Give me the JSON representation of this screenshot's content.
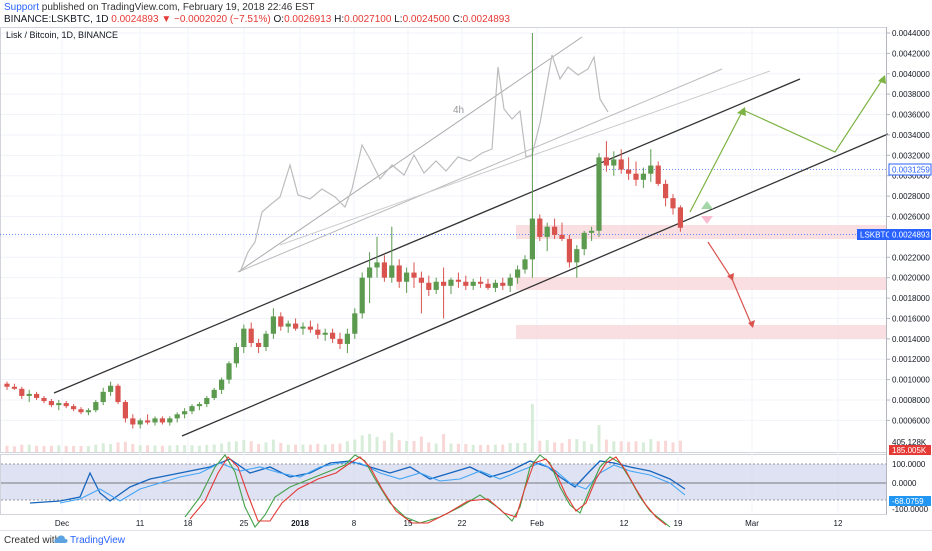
{
  "header": {
    "line1_link": "Support",
    "line1_text": " published on TradingView.com, February 19, 2018 22:46 EST",
    "symbol": "BINANCE:LSKBTC, 1D",
    "last": "0.0024893",
    "change": "▼ −0.0002020 (−7.51%)",
    "o_label": "O:",
    "o": "0.0026913",
    "h_label": "H:",
    "h": "0.0027100",
    "l_label": "L:",
    "l": "0.0024500",
    "c_label": "C:",
    "c": "0.0024893"
  },
  "legend": "Lisk / Bitcoin, 1D, BINANCE",
  "annotation_4h": "4h",
  "footer": {
    "created_with": "Created with",
    "brand": "TradingView"
  },
  "colors": {
    "up": "#5b9a4f",
    "down": "#d9534f",
    "accent": "#2962ff",
    "channel": "#333333"
  },
  "chart_data": {
    "type": "candlestick",
    "price_axis": {
      "ticks": [
        "0.0044000",
        "0.0042000",
        "0.0040000",
        "0.0038000",
        "0.0036000",
        "0.0034000",
        "0.0032000",
        "0.0030000",
        "0.0028000",
        "0.0026000",
        "0.0024000",
        "0.0022000",
        "0.0020000",
        "0.0018000",
        "0.0016000",
        "0.0014000",
        "0.0012000",
        "0.0010000",
        "0.0008000",
        "0.0006000"
      ],
      "range": [
        0.00045,
        0.0045
      ]
    },
    "time_axis": [
      "Dec",
      "11",
      "18",
      "25",
      "2018",
      "8",
      "15",
      "22",
      "Feb",
      "12",
      "19",
      "Mar",
      "12"
    ],
    "last_price_label": "LSKBTC",
    "last_price_value": "0.0024893",
    "level_value": "0.0031259",
    "volume_label": "405.128K",
    "volume_red_label": "185.005K",
    "oscillator_ticks": [
      "100.0000",
      "0.0000",
      "-100.0000"
    ],
    "oscillator_value": "-68.0759",
    "candles": [
      [
        0.00096,
        0.00098,
        0.0009,
        0.00093
      ],
      [
        0.00093,
        0.00096,
        0.0009,
        0.00091
      ],
      [
        0.00091,
        0.00093,
        0.00081,
        0.00084
      ],
      [
        0.00084,
        0.0009,
        0.00078,
        0.00086
      ],
      [
        0.00086,
        0.00088,
        0.0008,
        0.00082
      ],
      [
        0.00082,
        0.00084,
        0.00077,
        0.00079
      ],
      [
        0.00079,
        0.00081,
        0.00073,
        0.00075
      ],
      [
        0.00075,
        0.0008,
        0.0007,
        0.00077
      ],
      [
        0.00077,
        0.00079,
        0.00072,
        0.00074
      ],
      [
        0.00074,
        0.00076,
        0.00069,
        0.00071
      ],
      [
        0.00071,
        0.00073,
        0.00066,
        0.00068
      ],
      [
        0.00068,
        0.00072,
        0.00065,
        0.0007
      ],
      [
        0.0007,
        0.0008,
        0.00068,
        0.00078
      ],
      [
        0.00078,
        0.00092,
        0.00075,
        0.00088
      ],
      [
        0.00088,
        0.00098,
        0.00084,
        0.00094
      ],
      [
        0.00094,
        0.00096,
        0.00076,
        0.00078
      ],
      [
        0.00078,
        0.0008,
        0.00058,
        0.00062
      ],
      [
        0.00062,
        0.00066,
        0.00052,
        0.00056
      ],
      [
        0.00056,
        0.00062,
        0.00052,
        0.0006
      ],
      [
        0.0006,
        0.00066,
        0.00056,
        0.00058
      ],
      [
        0.00058,
        0.00064,
        0.00055,
        0.00062
      ],
      [
        0.00062,
        0.00064,
        0.00056,
        0.00058
      ],
      [
        0.00058,
        0.00064,
        0.00055,
        0.00062
      ],
      [
        0.00062,
        0.00068,
        0.00058,
        0.00066
      ],
      [
        0.00066,
        0.00072,
        0.00062,
        0.00069
      ],
      [
        0.00069,
        0.00076,
        0.00066,
        0.00074
      ],
      [
        0.00074,
        0.00078,
        0.0007,
        0.00076
      ],
      [
        0.00076,
        0.00084,
        0.00073,
        0.00082
      ],
      [
        0.00082,
        0.00092,
        0.0008,
        0.0009
      ],
      [
        0.0009,
        0.00102,
        0.00086,
        0.001
      ],
      [
        0.001,
        0.00118,
        0.00096,
        0.00116
      ],
      [
        0.00116,
        0.00136,
        0.00112,
        0.00132
      ],
      [
        0.00132,
        0.00154,
        0.00126,
        0.0015
      ],
      [
        0.0015,
        0.00156,
        0.00132,
        0.00136
      ],
      [
        0.00136,
        0.0014,
        0.00126,
        0.00132
      ],
      [
        0.00132,
        0.00148,
        0.00128,
        0.00145
      ],
      [
        0.00145,
        0.0017,
        0.0014,
        0.00162
      ],
      [
        0.00162,
        0.00166,
        0.00148,
        0.00152
      ],
      [
        0.00152,
        0.00158,
        0.00146,
        0.00155
      ],
      [
        0.00155,
        0.0016,
        0.00148,
        0.0015
      ],
      [
        0.0015,
        0.00156,
        0.00144,
        0.00152
      ],
      [
        0.00152,
        0.00158,
        0.00146,
        0.00149
      ],
      [
        0.00149,
        0.00155,
        0.0014,
        0.00144
      ],
      [
        0.00144,
        0.0015,
        0.00138,
        0.00146
      ],
      [
        0.00146,
        0.0015,
        0.00136,
        0.0014
      ],
      [
        0.0014,
        0.00146,
        0.0013,
        0.00135
      ],
      [
        0.00135,
        0.0015,
        0.00126,
        0.00145
      ],
      [
        0.00145,
        0.0017,
        0.0014,
        0.00165
      ],
      [
        0.00165,
        0.00205,
        0.0016,
        0.002
      ],
      [
        0.002,
        0.00225,
        0.00175,
        0.0021
      ],
      [
        0.0021,
        0.0024,
        0.002,
        0.00215
      ],
      [
        0.00215,
        0.00222,
        0.00196,
        0.002
      ],
      [
        0.002,
        0.0025,
        0.00195,
        0.00212
      ],
      [
        0.00212,
        0.00218,
        0.0019,
        0.00196
      ],
      [
        0.00196,
        0.0021,
        0.00185,
        0.00205
      ],
      [
        0.00205,
        0.00215,
        0.0019,
        0.002
      ],
      [
        0.002,
        0.00206,
        0.00165,
        0.00195
      ],
      [
        0.00195,
        0.00202,
        0.00182,
        0.00188
      ],
      [
        0.00188,
        0.002,
        0.00184,
        0.00196
      ],
      [
        0.00196,
        0.0021,
        0.0016,
        0.00192
      ],
      [
        0.00192,
        0.002,
        0.00184,
        0.00198
      ],
      [
        0.00198,
        0.00205,
        0.0019,
        0.00196
      ],
      [
        0.00196,
        0.00202,
        0.00188,
        0.00192
      ],
      [
        0.00192,
        0.00199,
        0.00188,
        0.00196
      ],
      [
        0.00196,
        0.00201,
        0.0019,
        0.00194
      ],
      [
        0.00194,
        0.00199,
        0.00188,
        0.0019
      ],
      [
        0.0019,
        0.00198,
        0.00186,
        0.00195
      ],
      [
        0.00195,
        0.002,
        0.00188,
        0.00192
      ],
      [
        0.00192,
        0.00204,
        0.00186,
        0.002
      ],
      [
        0.002,
        0.00212,
        0.00194,
        0.00208
      ],
      [
        0.00208,
        0.00222,
        0.00204,
        0.00218
      ],
      [
        0.00218,
        0.0044,
        0.002,
        0.00258
      ],
      [
        0.00258,
        0.00262,
        0.00236,
        0.0024
      ],
      [
        0.0024,
        0.00254,
        0.00226,
        0.0025
      ],
      [
        0.0025,
        0.00258,
        0.00238,
        0.00242
      ],
      [
        0.00242,
        0.00254,
        0.00236,
        0.00238
      ],
      [
        0.00238,
        0.00242,
        0.0021,
        0.00215
      ],
      [
        0.00215,
        0.00232,
        0.002,
        0.00228
      ],
      [
        0.00228,
        0.00246,
        0.00222,
        0.00244
      ],
      [
        0.00244,
        0.0025,
        0.00236,
        0.00246
      ],
      [
        0.00246,
        0.00322,
        0.0024,
        0.00318
      ],
      [
        0.00318,
        0.00334,
        0.00304,
        0.0031
      ],
      [
        0.0031,
        0.00324,
        0.003,
        0.00316
      ],
      [
        0.00316,
        0.00326,
        0.00302,
        0.00306
      ],
      [
        0.00306,
        0.00318,
        0.00296,
        0.00302
      ],
      [
        0.00302,
        0.00314,
        0.0029,
        0.00296
      ],
      [
        0.00296,
        0.00308,
        0.00288,
        0.00302
      ],
      [
        0.00302,
        0.00326,
        0.00294,
        0.0031
      ],
      [
        0.0031,
        0.00314,
        0.0029,
        0.00292
      ],
      [
        0.00292,
        0.00296,
        0.0027,
        0.00278
      ],
      [
        0.00278,
        0.00282,
        0.00262,
        0.00268
      ],
      [
        0.00269,
        0.00271,
        0.00245,
        0.00249
      ]
    ]
  }
}
